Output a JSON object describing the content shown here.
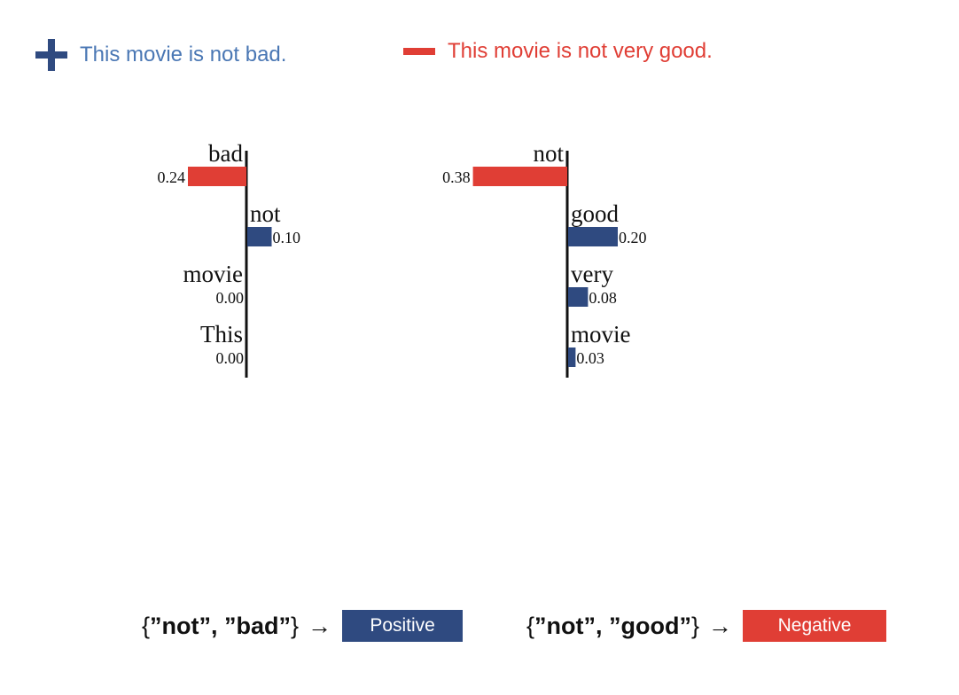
{
  "legend": {
    "positive": {
      "text": "This movie is not bad.",
      "color": "#4a77b4",
      "icon": "plus-icon"
    },
    "negative": {
      "text": "This movie is not very good.",
      "color": "#e03e35",
      "icon": "minus-icon"
    }
  },
  "colors": {
    "positive_bar": "#2f4a80",
    "negative_bar": "#e03e35"
  },
  "chart_data": [
    {
      "type": "bar",
      "orientation": "horizontal",
      "categories": [
        "bad",
        "not",
        "movie",
        "This"
      ],
      "values": [
        -0.24,
        0.1,
        0.0,
        0.0
      ],
      "labels": [
        "0.24",
        "0.10",
        "0.00",
        "0.00"
      ]
    },
    {
      "type": "bar",
      "orientation": "horizontal",
      "categories": [
        "not",
        "good",
        "very",
        "movie"
      ],
      "values": [
        -0.38,
        0.2,
        0.08,
        0.03
      ],
      "labels": [
        "0.38",
        "0.20",
        "0.08",
        "0.03"
      ]
    }
  ],
  "rules": {
    "positive": {
      "open": "{",
      "w1": "”not”",
      "sep": ", ",
      "w2": "”bad”",
      "close": "}",
      "arrow": "→",
      "badge": "Positive",
      "badge_color": "#2f4a80"
    },
    "negative": {
      "open": "{",
      "w1": "”not”",
      "sep": ", ",
      "w2": "”good”",
      "close": "}",
      "arrow": "→",
      "badge": "Negative",
      "badge_color": "#e03e35"
    }
  }
}
